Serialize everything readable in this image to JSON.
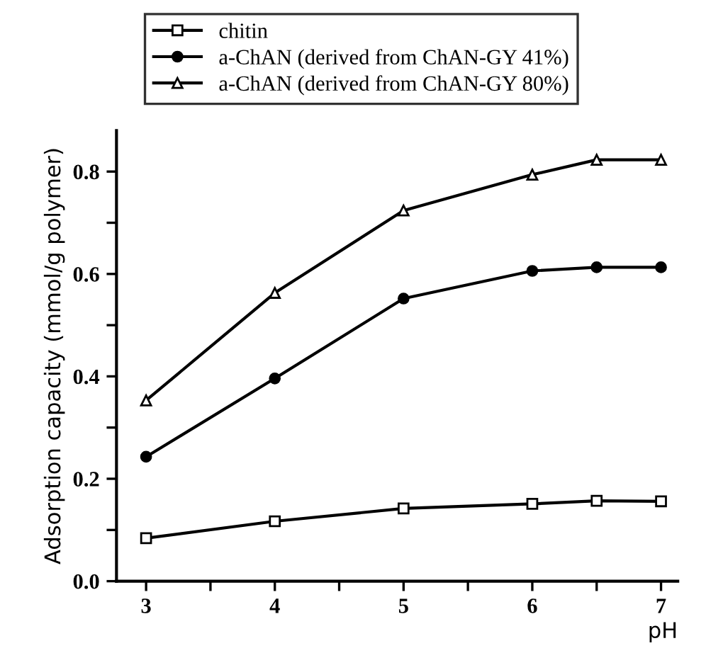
{
  "chart_data": {
    "type": "line",
    "xlabel": "pH",
    "ylabel": "Adsorption capacity (mmol/g polymer)",
    "x": [
      3,
      4,
      5,
      6,
      6.5,
      7
    ],
    "series": [
      {
        "name": "chitin",
        "color": "#000000",
        "marker": "square",
        "values": [
          0.084,
          0.117,
          0.142,
          0.151,
          0.157,
          0.156
        ]
      },
      {
        "name": "a-ChAN (derived from ChAN-GY 41%)",
        "color": "#000000",
        "marker": "circle",
        "values": [
          0.243,
          0.396,
          0.552,
          0.606,
          0.613,
          0.613
        ]
      },
      {
        "name": "a-ChAN (derived from ChAN-GY 80%)",
        "color": "#000000",
        "marker": "triangle",
        "values": [
          0.353,
          0.563,
          0.724,
          0.794,
          0.823,
          0.823
        ]
      }
    ],
    "xlim": [
      2.77,
      7.13
    ],
    "ylim": [
      0,
      0.88
    ],
    "xticks": [
      3,
      {
        "value": 3.5,
        "label": null
      },
      4,
      {
        "value": 4.5,
        "label": null
      },
      5,
      {
        "value": 5.5,
        "label": null
      },
      6,
      {
        "value": 6.5,
        "label": null
      },
      7
    ],
    "yticks": [
      {
        "value": 0,
        "label": "0.0"
      },
      {
        "value": 0.1,
        "label": null
      },
      0.2,
      {
        "value": 0.3,
        "label": null
      },
      0.4,
      {
        "value": 0.5,
        "label": null
      },
      0.6,
      {
        "value": 0.7,
        "label": null
      },
      0.8
    ],
    "grid": false,
    "legend": "top",
    "line_style": "solid"
  }
}
